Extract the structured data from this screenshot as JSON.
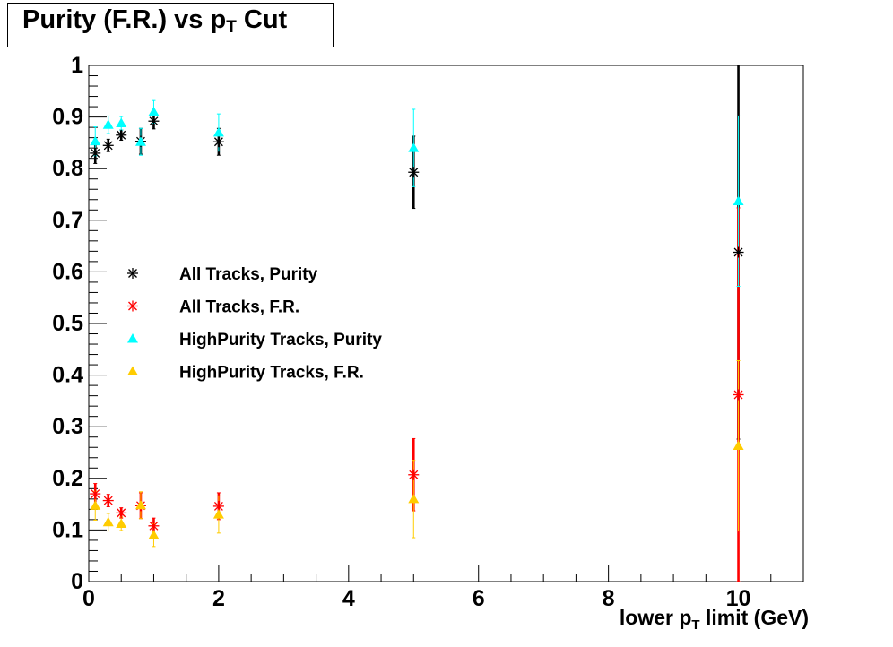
{
  "chart_data": {
    "type": "scatter",
    "title": {
      "main": "Purity (F.R.) vs p",
      "sub": "T",
      "suffix": " Cut"
    },
    "xlabel": {
      "main": "lower p",
      "sub": "T",
      "suffix": " limit (GeV)"
    },
    "ylabel": "",
    "xlim": [
      0,
      11
    ],
    "ylim": [
      0,
      1
    ],
    "x_ticks": [
      0,
      2,
      4,
      6,
      8,
      10
    ],
    "y_ticks": [
      0,
      0.1,
      0.2,
      0.3,
      0.4,
      0.5,
      0.6,
      0.7,
      0.8,
      0.9,
      1
    ],
    "y_tick_labels": [
      "0",
      "0.1",
      "0.2",
      "0.3",
      "0.4",
      "0.5",
      "0.6",
      "0.7",
      "0.8",
      "0.9",
      "1"
    ],
    "grid": false,
    "legend_position": "center-left",
    "series": [
      {
        "name": "All Tracks, Purity",
        "marker": "asterisk",
        "color": "#000000",
        "points": [
          {
            "x": 0.1,
            "y": 0.83,
            "err": 0.02
          },
          {
            "x": 0.3,
            "y": 0.845,
            "err": 0.012
          },
          {
            "x": 0.5,
            "y": 0.865,
            "err": 0.01
          },
          {
            "x": 0.8,
            "y": 0.853,
            "err": 0.025
          },
          {
            "x": 1.0,
            "y": 0.892,
            "err": 0.015
          },
          {
            "x": 2.0,
            "y": 0.852,
            "err": 0.026
          },
          {
            "x": 5.0,
            "y": 0.793,
            "err": 0.07
          },
          {
            "x": 10.0,
            "y": 0.638,
            "err": 0.362
          }
        ]
      },
      {
        "name": "All Tracks, F.R.",
        "marker": "asterisk",
        "color": "#ff0000",
        "points": [
          {
            "x": 0.1,
            "y": 0.17,
            "err": 0.02
          },
          {
            "x": 0.3,
            "y": 0.157,
            "err": 0.012
          },
          {
            "x": 0.5,
            "y": 0.133,
            "err": 0.01
          },
          {
            "x": 0.8,
            "y": 0.147,
            "err": 0.025
          },
          {
            "x": 1.0,
            "y": 0.108,
            "err": 0.015
          },
          {
            "x": 2.0,
            "y": 0.146,
            "err": 0.026
          },
          {
            "x": 5.0,
            "y": 0.207,
            "err": 0.07
          },
          {
            "x": 10.0,
            "y": 0.362,
            "err": 0.362
          }
        ]
      },
      {
        "name": "HighPurity Tracks, Purity",
        "marker": "triangle",
        "color": "#00ffff",
        "points": [
          {
            "x": 0.1,
            "y": 0.853,
            "err": 0.028
          },
          {
            "x": 0.3,
            "y": 0.885,
            "err": 0.017
          },
          {
            "x": 0.5,
            "y": 0.888,
            "err": 0.013
          },
          {
            "x": 0.8,
            "y": 0.852,
            "err": 0.026
          },
          {
            "x": 1.0,
            "y": 0.91,
            "err": 0.022
          },
          {
            "x": 2.0,
            "y": 0.87,
            "err": 0.036
          },
          {
            "x": 5.0,
            "y": 0.84,
            "err": 0.075
          },
          {
            "x": 10.0,
            "y": 0.737,
            "err": 0.165
          }
        ]
      },
      {
        "name": "HighPurity Tracks, F.R.",
        "marker": "triangle",
        "color": "#ffcc00",
        "points": [
          {
            "x": 0.1,
            "y": 0.147,
            "err": 0.028
          },
          {
            "x": 0.3,
            "y": 0.115,
            "err": 0.017
          },
          {
            "x": 0.5,
            "y": 0.112,
            "err": 0.013
          },
          {
            "x": 0.8,
            "y": 0.148,
            "err": 0.026
          },
          {
            "x": 1.0,
            "y": 0.09,
            "err": 0.022
          },
          {
            "x": 2.0,
            "y": 0.13,
            "err": 0.036
          },
          {
            "x": 5.0,
            "y": 0.16,
            "err": 0.075
          },
          {
            "x": 10.0,
            "y": 0.263,
            "err": 0.165
          }
        ]
      }
    ]
  }
}
